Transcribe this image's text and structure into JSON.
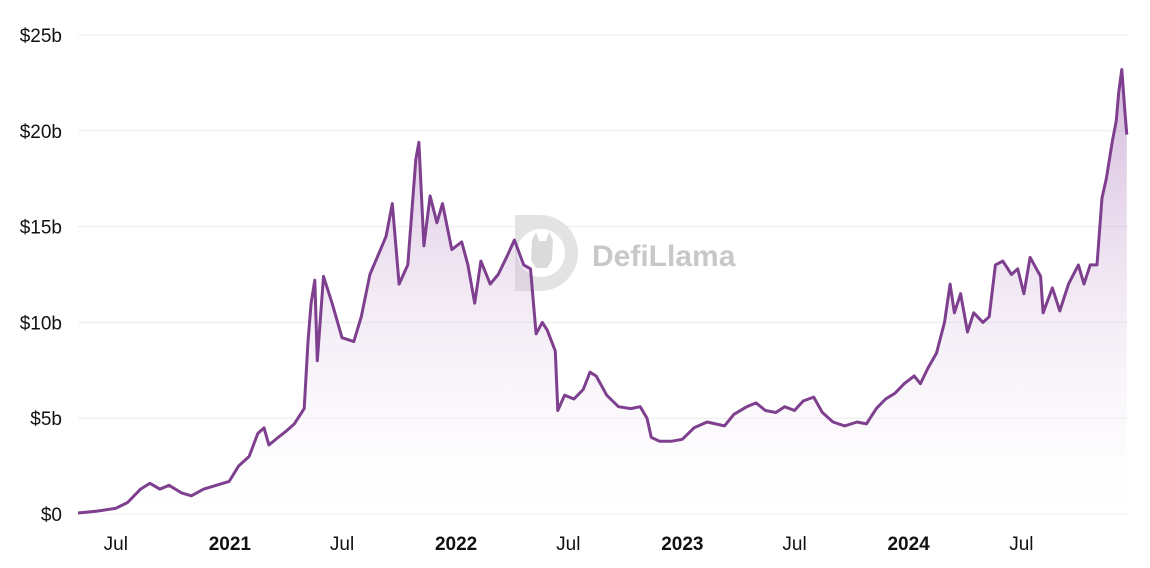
{
  "watermark": {
    "text": "DefiLlama",
    "icon": "llama-logo-icon"
  },
  "colors": {
    "line": "#7e3f8f",
    "fill_top": "#b07fbf",
    "fill_bottom": "#ffffff",
    "grid": "#ececec"
  },
  "chart_data": {
    "type": "area",
    "title": "",
    "xlabel": "",
    "ylabel": "",
    "unit": "USD",
    "grid": true,
    "legend": "none",
    "xlim": [
      "2020-05-01",
      "2024-12-20"
    ],
    "ylim": [
      0,
      25
    ],
    "y_ticks": [
      {
        "value": 0,
        "label": "$0"
      },
      {
        "value": 5,
        "label": "$5b"
      },
      {
        "value": 10,
        "label": "$10b"
      },
      {
        "value": 15,
        "label": "$15b"
      },
      {
        "value": 20,
        "label": "$20b"
      },
      {
        "value": 25,
        "label": "$25b"
      }
    ],
    "x_ticks": [
      {
        "date": "2020-07-01",
        "label": "Jul",
        "bold": false
      },
      {
        "date": "2021-01-01",
        "label": "2021",
        "bold": true
      },
      {
        "date": "2021-07-01",
        "label": "Jul",
        "bold": false
      },
      {
        "date": "2022-01-01",
        "label": "2022",
        "bold": true
      },
      {
        "date": "2022-07-01",
        "label": "Jul",
        "bold": false
      },
      {
        "date": "2023-01-01",
        "label": "2023",
        "bold": true
      },
      {
        "date": "2023-07-01",
        "label": "Jul",
        "bold": false
      },
      {
        "date": "2024-01-01",
        "label": "2024",
        "bold": true
      },
      {
        "date": "2024-07-01",
        "label": "Jul",
        "bold": false
      }
    ],
    "series": [
      {
        "points": [
          [
            "2020-05-01",
            0.05
          ],
          [
            "2020-06-01",
            0.15
          ],
          [
            "2020-07-01",
            0.3
          ],
          [
            "2020-07-20",
            0.6
          ],
          [
            "2020-08-10",
            1.3
          ],
          [
            "2020-08-25",
            1.6
          ],
          [
            "2020-09-10",
            1.3
          ],
          [
            "2020-09-25",
            1.5
          ],
          [
            "2020-10-15",
            1.1
          ],
          [
            "2020-10-31",
            0.95
          ],
          [
            "2020-11-20",
            1.3
          ],
          [
            "2020-12-10",
            1.5
          ],
          [
            "2020-12-31",
            1.7
          ],
          [
            "2021-01-15",
            2.5
          ],
          [
            "2021-02-01",
            3.0
          ],
          [
            "2021-02-15",
            4.2
          ],
          [
            "2021-02-25",
            4.5
          ],
          [
            "2021-03-05",
            3.6
          ],
          [
            "2021-03-20",
            4.0
          ],
          [
            "2021-04-01",
            4.3
          ],
          [
            "2021-04-15",
            4.7
          ],
          [
            "2021-05-01",
            5.5
          ],
          [
            "2021-05-07",
            9.0
          ],
          [
            "2021-05-12",
            11.0
          ],
          [
            "2021-05-18",
            12.2
          ],
          [
            "2021-05-22",
            8.0
          ],
          [
            "2021-06-01",
            12.4
          ],
          [
            "2021-06-15",
            11.0
          ],
          [
            "2021-07-01",
            9.2
          ],
          [
            "2021-07-20",
            9.0
          ],
          [
            "2021-08-01",
            10.3
          ],
          [
            "2021-08-15",
            12.5
          ],
          [
            "2021-09-01",
            13.8
          ],
          [
            "2021-09-10",
            14.5
          ],
          [
            "2021-09-20",
            16.2
          ],
          [
            "2021-10-01",
            12.0
          ],
          [
            "2021-10-15",
            13.0
          ],
          [
            "2021-10-28",
            18.5
          ],
          [
            "2021-11-02",
            19.4
          ],
          [
            "2021-11-10",
            14.0
          ],
          [
            "2021-11-20",
            16.6
          ],
          [
            "2021-12-01",
            15.2
          ],
          [
            "2021-12-10",
            16.2
          ],
          [
            "2021-12-25",
            13.8
          ],
          [
            "2022-01-10",
            14.2
          ],
          [
            "2022-01-20",
            13.0
          ],
          [
            "2022-01-31",
            11.0
          ],
          [
            "2022-02-10",
            13.2
          ],
          [
            "2022-02-25",
            12.0
          ],
          [
            "2022-03-10",
            12.5
          ],
          [
            "2022-03-25",
            13.5
          ],
          [
            "2022-04-05",
            14.3
          ],
          [
            "2022-04-20",
            13.0
          ],
          [
            "2022-05-01",
            12.8
          ],
          [
            "2022-05-10",
            9.4
          ],
          [
            "2022-05-20",
            10.0
          ],
          [
            "2022-05-28",
            9.6
          ],
          [
            "2022-06-10",
            8.5
          ],
          [
            "2022-06-14",
            5.4
          ],
          [
            "2022-06-25",
            6.2
          ],
          [
            "2022-07-10",
            6.0
          ],
          [
            "2022-07-25",
            6.5
          ],
          [
            "2022-08-05",
            7.4
          ],
          [
            "2022-08-15",
            7.2
          ],
          [
            "2022-09-01",
            6.2
          ],
          [
            "2022-09-20",
            5.6
          ],
          [
            "2022-10-10",
            5.5
          ],
          [
            "2022-10-25",
            5.6
          ],
          [
            "2022-11-05",
            5.0
          ],
          [
            "2022-11-12",
            4.0
          ],
          [
            "2022-11-25",
            3.8
          ],
          [
            "2022-12-15",
            3.8
          ],
          [
            "2023-01-01",
            3.9
          ],
          [
            "2023-01-20",
            4.5
          ],
          [
            "2023-02-10",
            4.8
          ],
          [
            "2023-03-10",
            4.6
          ],
          [
            "2023-03-25",
            5.2
          ],
          [
            "2023-04-15",
            5.6
          ],
          [
            "2023-04-30",
            5.8
          ],
          [
            "2023-05-15",
            5.4
          ],
          [
            "2023-06-01",
            5.3
          ],
          [
            "2023-06-15",
            5.6
          ],
          [
            "2023-07-01",
            5.4
          ],
          [
            "2023-07-15",
            5.9
          ],
          [
            "2023-08-01",
            6.1
          ],
          [
            "2023-08-15",
            5.3
          ],
          [
            "2023-09-01",
            4.8
          ],
          [
            "2023-09-20",
            4.6
          ],
          [
            "2023-10-10",
            4.8
          ],
          [
            "2023-10-25",
            4.7
          ],
          [
            "2023-11-10",
            5.5
          ],
          [
            "2023-11-25",
            6.0
          ],
          [
            "2023-12-10",
            6.3
          ],
          [
            "2023-12-25",
            6.8
          ],
          [
            "2024-01-10",
            7.2
          ],
          [
            "2024-01-20",
            6.8
          ],
          [
            "2024-02-01",
            7.6
          ],
          [
            "2024-02-15",
            8.4
          ],
          [
            "2024-02-28",
            10.0
          ],
          [
            "2024-03-08",
            12.0
          ],
          [
            "2024-03-15",
            10.5
          ],
          [
            "2024-03-25",
            11.5
          ],
          [
            "2024-04-05",
            9.5
          ],
          [
            "2024-04-15",
            10.5
          ],
          [
            "2024-04-30",
            10.0
          ],
          [
            "2024-05-10",
            10.3
          ],
          [
            "2024-05-20",
            13.0
          ],
          [
            "2024-06-01",
            13.2
          ],
          [
            "2024-06-15",
            12.5
          ],
          [
            "2024-06-25",
            12.8
          ],
          [
            "2024-07-05",
            11.5
          ],
          [
            "2024-07-15",
            13.4
          ],
          [
            "2024-08-01",
            12.4
          ],
          [
            "2024-08-05",
            10.5
          ],
          [
            "2024-08-20",
            11.8
          ],
          [
            "2024-09-01",
            10.6
          ],
          [
            "2024-09-15",
            12.0
          ],
          [
            "2024-10-01",
            13.0
          ],
          [
            "2024-10-10",
            12.0
          ],
          [
            "2024-10-20",
            13.0
          ],
          [
            "2024-10-31",
            13.0
          ],
          [
            "2024-11-08",
            16.5
          ],
          [
            "2024-11-15",
            17.5
          ],
          [
            "2024-11-25",
            19.5
          ],
          [
            "2024-12-01",
            20.5
          ],
          [
            "2024-12-05",
            22.0
          ],
          [
            "2024-12-10",
            23.2
          ],
          [
            "2024-12-15",
            21.0
          ],
          [
            "2024-12-18",
            19.8
          ]
        ]
      }
    ]
  }
}
